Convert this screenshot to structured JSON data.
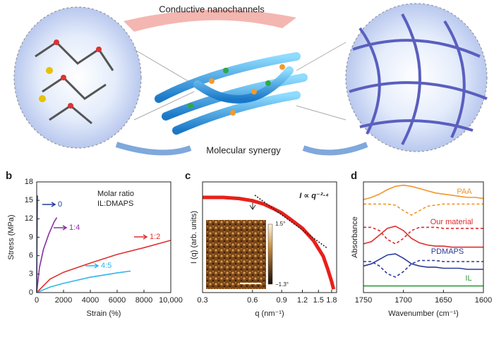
{
  "illustration": {
    "labels": [
      "Conductive nanochannels",
      "Molecular synergy"
    ]
  },
  "chart_data": [
    {
      "type": "line",
      "panel": "b",
      "x_label": "Strain (%)",
      "y_label": "Stress (MPa)",
      "annotations": [
        "Molar ratio",
        "IL:DMAPS"
      ],
      "xlim": [
        0,
        10000
      ],
      "xticks": [
        0,
        2000,
        4000,
        6000,
        8000,
        {
          "value": 10000,
          "label": "10,000"
        }
      ],
      "ylim": [
        0,
        18
      ],
      "yticks": [
        0,
        3,
        6,
        9,
        12,
        15,
        18
      ],
      "series": [
        {
          "name": "0",
          "color": "#1f3f99",
          "x": [
            0,
            20,
            50
          ],
          "values": [
            0,
            8,
            15.8
          ]
        },
        {
          "name": "1:4",
          "color": "#8a2fa0",
          "x": [
            0,
            200,
            500,
            900,
            1300,
            1500
          ],
          "values": [
            0,
            4,
            7,
            9.5,
            11.5,
            12.2
          ]
        },
        {
          "name": "1:2",
          "color": "#e03030",
          "x": [
            0,
            1000,
            2000,
            4000,
            6000,
            8000,
            10000
          ],
          "values": [
            0,
            2.2,
            3.3,
            4.8,
            6.2,
            7.3,
            8.5
          ]
        },
        {
          "name": "4:5",
          "color": "#2fb6e8",
          "x": [
            0,
            1000,
            2000,
            4000,
            6000,
            7000
          ],
          "values": [
            0,
            0.9,
            1.5,
            2.5,
            3.2,
            3.5
          ]
        }
      ]
    },
    {
      "type": "line",
      "panel": "c",
      "x_label": "q (nm⁻¹)",
      "y_label": "I (q) (arb. units)",
      "annotations": [
        "I ∝ q⁻²·⁴"
      ],
      "inset_labels": [
        "1.5°",
        "−1.3°"
      ],
      "xscale": "log",
      "xlim": [
        0.3,
        1.93
      ],
      "xticks": [
        0.3,
        0.6,
        0.9,
        1.2,
        1.5,
        1.8
      ],
      "ylim": [
        0,
        100
      ],
      "series": [
        {
          "color": "#e8201a",
          "width": 5,
          "x": [
            0.3,
            0.4,
            0.5,
            0.6,
            0.7,
            0.8,
            0.9,
            1.0,
            1.2,
            1.4,
            1.6,
            1.7,
            1.8,
            1.85
          ],
          "values": [
            86,
            86,
            85,
            83,
            80,
            76,
            72,
            67,
            58,
            47,
            33,
            22,
            10,
            3
          ]
        },
        {
          "color": "#222222",
          "dash": true,
          "x": [
            0.62,
            1.7
          ],
          "values": [
            88,
            40
          ]
        }
      ]
    },
    {
      "type": "line",
      "panel": "d",
      "x_label": "Wavenumber (cm⁻¹)",
      "y_label": "Absorbance",
      "xlim": [
        1750,
        1600
      ],
      "xticks": [
        1750,
        1700,
        1650,
        1600
      ],
      "ylim": [
        0,
        100
      ],
      "x": [
        1750,
        1740,
        1730,
        1720,
        1710,
        1700,
        1690,
        1680,
        1670,
        1660,
        1650,
        1640,
        1630,
        1620,
        1610,
        1600
      ],
      "series": [
        {
          "name": "PAA",
          "color": "#f0962a",
          "values": [
            84,
            86,
            89,
            93,
            96,
            97,
            96,
            94,
            92,
            90,
            89,
            88,
            87,
            86,
            86,
            85
          ]
        },
        {
          "color": "#f0962a",
          "dash": true,
          "values": [
            80,
            80,
            80,
            80,
            79,
            74,
            70,
            74,
            78,
            79,
            80,
            80,
            80,
            80,
            80,
            80
          ]
        },
        {
          "name": "Our material",
          "color": "#e02a2a",
          "values": [
            44,
            46,
            52,
            58,
            60,
            56,
            49,
            45,
            43,
            42,
            42,
            41,
            41,
            41,
            41,
            41
          ]
        },
        {
          "color": "#e02a2a",
          "dash": true,
          "values": [
            59,
            59,
            56,
            48,
            44,
            49,
            56,
            59,
            59,
            59,
            58,
            58,
            58,
            58,
            58,
            58
          ]
        },
        {
          "name": "PDMAPS",
          "color": "#2a3a9a",
          "values": [
            24,
            26,
            30,
            34,
            35,
            31,
            26,
            24,
            23,
            23,
            22,
            22,
            22,
            21,
            21,
            21
          ]
        },
        {
          "color": "#2a3a9a",
          "dash": true,
          "values": [
            28,
            28,
            24,
            17,
            14,
            19,
            26,
            29,
            29,
            29,
            28,
            28,
            28,
            28,
            28,
            28
          ]
        },
        {
          "name": "IL",
          "color": "#2e9a3a",
          "values": [
            6,
            6,
            6,
            6,
            6,
            6,
            6,
            6,
            6,
            6,
            6,
            6,
            6,
            6,
            6,
            6
          ]
        }
      ]
    }
  ]
}
